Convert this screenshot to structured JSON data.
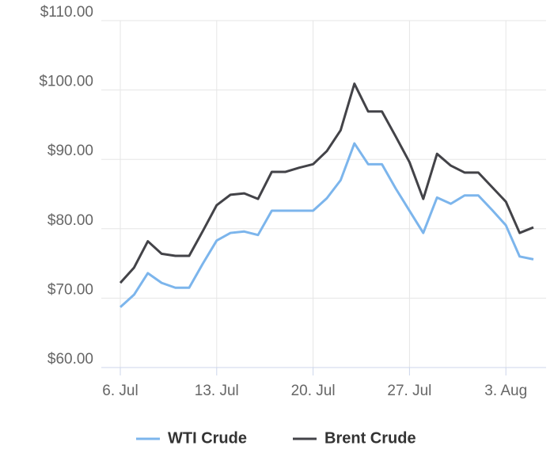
{
  "chart_data": {
    "type": "line",
    "categories": [
      "6. Jul",
      null,
      null,
      null,
      null,
      null,
      null,
      "13. Jul",
      null,
      null,
      null,
      null,
      null,
      null,
      "20. Jul",
      null,
      null,
      null,
      null,
      null,
      null,
      "27. Jul",
      null,
      null,
      null,
      null,
      null,
      null,
      "3. Aug",
      null,
      null
    ],
    "series": [
      {
        "name": "WTI Crude",
        "color": "#7cb5ec",
        "values": [
          68.7,
          70.5,
          73.6,
          72.2,
          71.5,
          71.5,
          75.0,
          78.3,
          79.4,
          79.6,
          79.1,
          82.6,
          82.6,
          82.6,
          82.6,
          84.4,
          87.0,
          92.3,
          89.3,
          89.3,
          85.8,
          82.6,
          79.4,
          84.5,
          83.6,
          84.8,
          84.8,
          82.7,
          80.5,
          76.0,
          75.6
        ]
      },
      {
        "name": "Brent Crude",
        "color": "#434348",
        "values": [
          72.2,
          74.4,
          78.2,
          76.4,
          76.1,
          76.1,
          79.7,
          83.4,
          84.9,
          85.1,
          84.3,
          88.2,
          88.2,
          88.8,
          89.3,
          91.2,
          94.2,
          100.9,
          96.9,
          96.9,
          93.3,
          89.6,
          84.3,
          90.8,
          89.1,
          88.1,
          88.1,
          86.0,
          83.9,
          79.4,
          80.2
        ]
      }
    ],
    "ylim": [
      60,
      110
    ],
    "yticks": [
      {
        "value": 60,
        "label": "$60.00"
      },
      {
        "value": 70,
        "label": "$70.00"
      },
      {
        "value": 80,
        "label": "$80.00"
      },
      {
        "value": 90,
        "label": "$90.00"
      },
      {
        "value": 100,
        "label": "$100.00"
      },
      {
        "value": 110,
        "label": "$110.00"
      }
    ],
    "grid": true,
    "legend": "bottom"
  }
}
